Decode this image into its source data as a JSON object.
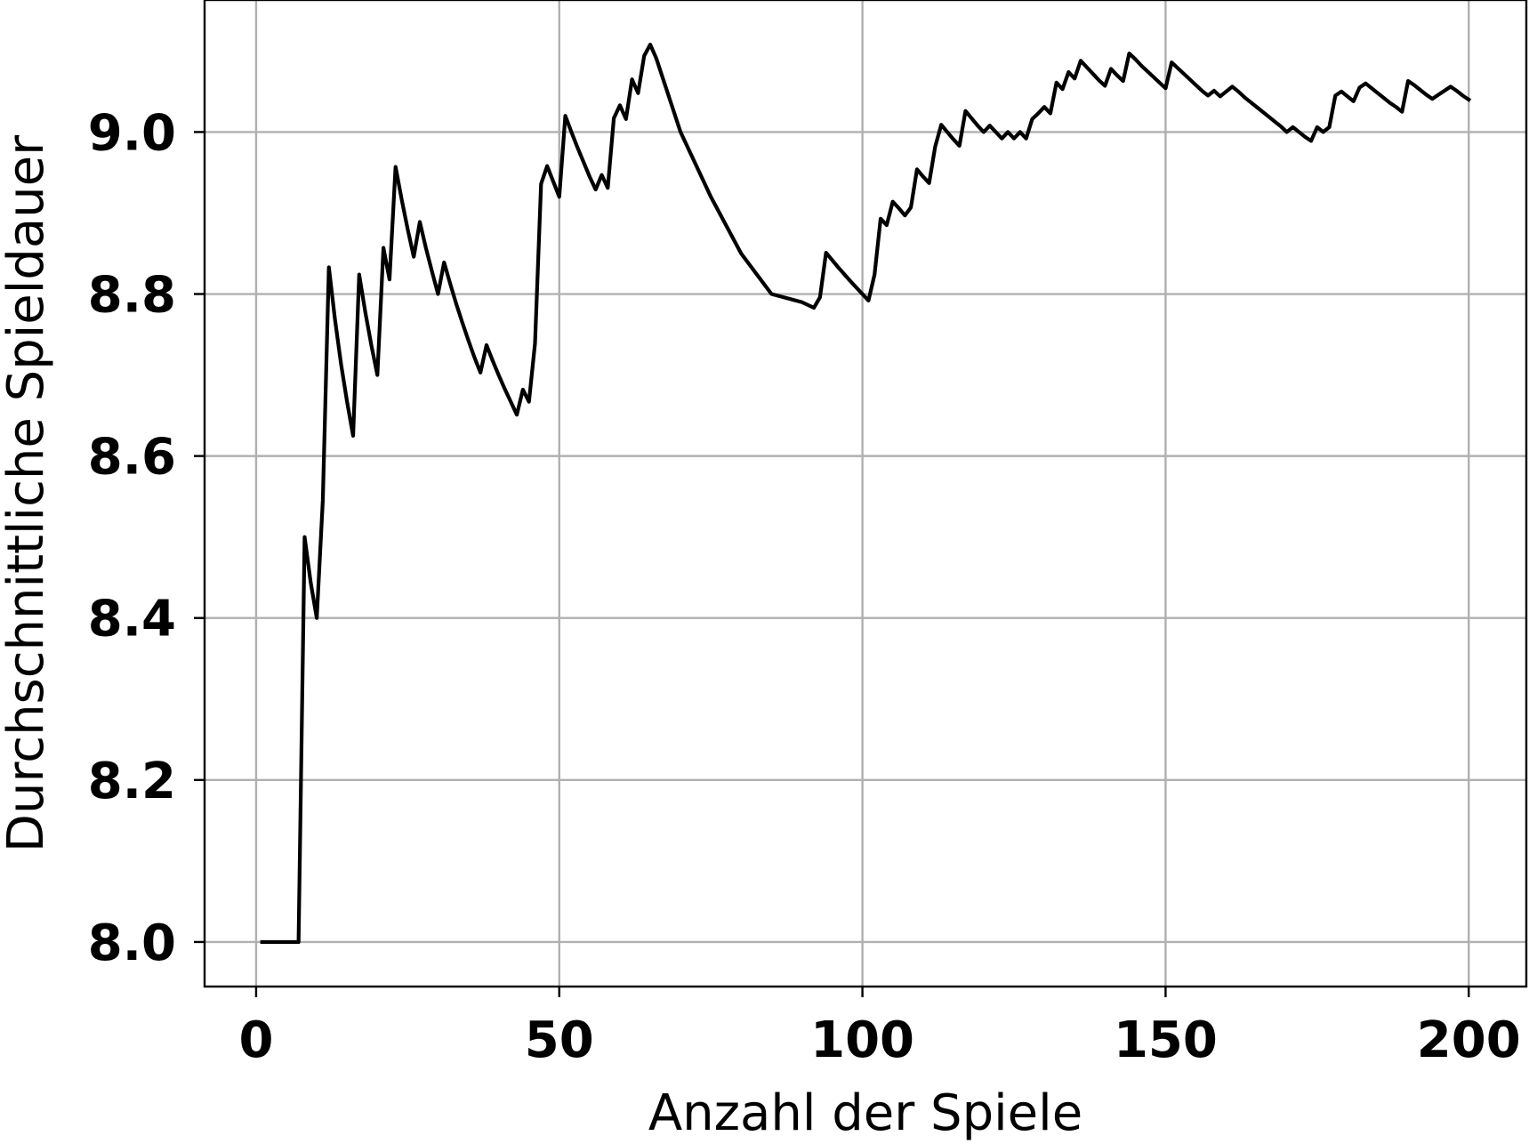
{
  "chart_data": {
    "type": "line",
    "title": "",
    "xlabel": "Anzahl der Spiele",
    "ylabel": "Durchschnittliche Spieldauer",
    "xlim": [
      -8.5,
      209.5
    ],
    "ylim": [
      7.945,
      9.163
    ],
    "xticks": [
      0,
      50,
      100,
      150,
      200
    ],
    "xtick_labels": [
      "0",
      "50",
      "100",
      "150",
      "200"
    ],
    "yticks": [
      8.0,
      8.2,
      8.4,
      8.6,
      8.8,
      9.0
    ],
    "ytick_labels": [
      "8.0",
      "8.2",
      "8.4",
      "8.6",
      "8.8",
      "9.0"
    ],
    "grid": true,
    "legend": "none",
    "line_color": "#000000",
    "grid_color": "#b0b0b0",
    "series": [
      {
        "x": [
          1,
          2,
          3,
          4,
          5,
          6,
          7,
          8,
          9,
          10,
          11,
          12,
          13,
          14,
          15,
          16,
          17,
          18,
          19,
          20,
          21,
          22,
          23,
          24,
          25,
          26,
          27,
          28,
          29,
          30,
          31,
          32,
          33,
          34,
          35,
          36,
          37,
          38,
          39,
          40,
          41,
          42,
          43,
          44,
          45,
          46,
          47,
          48,
          49,
          50,
          51,
          52,
          53,
          54,
          55,
          56,
          57,
          58,
          59,
          60,
          61,
          62,
          63,
          64,
          65,
          66,
          70,
          75,
          80,
          85,
          90,
          92,
          93,
          94,
          96,
          98,
          100,
          101,
          102,
          103,
          104,
          105,
          106,
          107,
          108,
          109,
          110,
          111,
          112,
          113,
          114,
          115,
          116,
          117,
          118,
          119,
          120,
          121,
          122,
          123,
          124,
          125,
          126,
          127,
          128,
          129,
          130,
          131,
          132,
          133,
          134,
          135,
          136,
          137,
          138,
          139,
          140,
          141,
          142,
          143,
          144,
          145,
          146,
          147,
          148,
          149,
          150,
          151,
          152,
          153,
          154,
          155,
          156,
          157,
          158,
          159,
          160,
          161,
          162,
          163,
          164,
          165,
          166,
          167,
          168,
          169,
          170,
          171,
          172,
          173,
          174,
          175,
          176,
          177,
          178,
          179,
          180,
          181,
          182,
          183,
          184,
          185,
          186,
          187,
          188,
          189,
          190,
          191,
          192,
          193,
          194,
          195,
          196,
          197,
          198,
          199,
          200
        ],
        "y": [
          8.0,
          8.0,
          8.0,
          8.0,
          8.0,
          8.0,
          8.0,
          8.5,
          8.444,
          8.4,
          8.545,
          8.833,
          8.769,
          8.714,
          8.667,
          8.625,
          8.824,
          8.778,
          8.737,
          8.7,
          8.857,
          8.818,
          8.957,
          8.917,
          8.88,
          8.846,
          8.889,
          8.857,
          8.828,
          8.8,
          8.839,
          8.813,
          8.788,
          8.765,
          8.743,
          8.722,
          8.703,
          8.737,
          8.718,
          8.7,
          8.683,
          8.667,
          8.651,
          8.682,
          8.667,
          8.739,
          8.936,
          8.958,
          8.939,
          8.92,
          9.02,
          9.0,
          8.981,
          8.963,
          8.945,
          8.929,
          8.947,
          8.931,
          9.017,
          9.033,
          9.016,
          9.065,
          9.048,
          9.094,
          9.108,
          9.091,
          9.0,
          8.92,
          8.85,
          8.8,
          8.79,
          8.783,
          8.796,
          8.851,
          8.833,
          8.816,
          8.8,
          8.792,
          8.824,
          8.893,
          8.885,
          8.914,
          8.906,
          8.897,
          8.907,
          8.954,
          8.945,
          8.937,
          8.982,
          9.009,
          9.0,
          8.991,
          8.983,
          9.026,
          9.017,
          9.008,
          9.0,
          9.008,
          9.0,
          8.992,
          9.0,
          8.992,
          9.0,
          8.992,
          9.016,
          9.023,
          9.031,
          9.023,
          9.061,
          9.053,
          9.074,
          9.066,
          9.088,
          9.08,
          9.072,
          9.064,
          9.057,
          9.078,
          9.07,
          9.063,
          9.097,
          9.09,
          9.082,
          9.075,
          9.068,
          9.061,
          9.054,
          9.086,
          9.079,
          9.072,
          9.065,
          9.058,
          9.051,
          9.045,
          9.051,
          9.044,
          9.05,
          9.056,
          9.05,
          9.043,
          9.037,
          9.031,
          9.025,
          9.019,
          9.013,
          9.007,
          9.0,
          9.006,
          9.0,
          8.994,
          8.989,
          9.006,
          9.0,
          9.006,
          9.045,
          9.05,
          9.044,
          9.038,
          9.055,
          9.06,
          9.054,
          9.048,
          9.042,
          9.036,
          9.031,
          9.025,
          9.063,
          9.058,
          9.052,
          9.046,
          9.041,
          9.046,
          9.051,
          9.056,
          9.051,
          9.045,
          9.04
        ]
      }
    ]
  }
}
